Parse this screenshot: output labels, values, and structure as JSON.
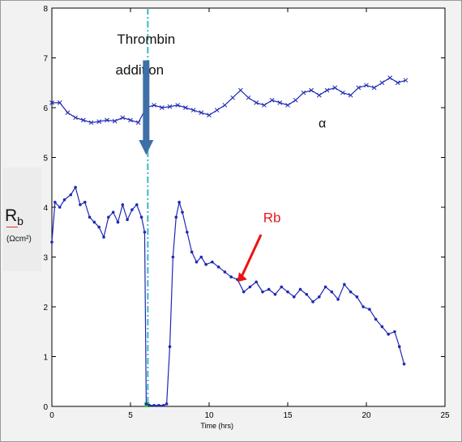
{
  "chart_data": {
    "type": "line",
    "xlabel": "Time (hrs)",
    "ylabel": "R",
    "ylabel_subscript": "b",
    "ylabel_unit": "(Ωcm²)",
    "xlim": [
      0,
      25
    ],
    "ylim": [
      0,
      8
    ],
    "xticks": [
      "0",
      "5",
      "10",
      "15",
      "20",
      "25"
    ],
    "yticks": [
      "0",
      "1",
      "2",
      "3",
      "4",
      "5",
      "6",
      "7",
      "8"
    ],
    "grid": false,
    "colors": {
      "series": "#1f28b4",
      "arrow_blue": "#3f6fa8",
      "arrow_red": "#ee1111",
      "vline": "#3cb8c8",
      "text_red": "#e31a1c"
    },
    "annotations": [
      {
        "text": "Thrombin",
        "x": 6.1,
        "y": 7.2
      },
      {
        "text": "addition",
        "x": 6.1,
        "y": 6.7
      },
      {
        "text": "α",
        "x": 17.2,
        "y": 5.6
      },
      {
        "text": "Rb",
        "x": 14.0,
        "y": 3.7
      }
    ],
    "event_x": 6.1,
    "series": [
      {
        "marker": "x",
        "x": [
          0,
          0.5,
          1,
          1.5,
          2,
          2.5,
          3,
          3.5,
          4,
          4.5,
          5,
          5.5,
          6,
          6.5,
          7,
          7.5,
          8,
          8.5,
          9,
          9.5,
          10,
          10.5,
          11,
          11.5,
          12,
          12.5,
          13,
          13.5,
          14,
          14.5,
          15,
          15.5,
          16,
          16.5,
          17,
          17.5,
          18,
          18.5,
          19,
          19.5,
          20,
          20.5,
          21,
          21.5,
          22,
          22.5
        ],
        "y": [
          6.1,
          6.1,
          5.9,
          5.8,
          5.75,
          5.7,
          5.72,
          5.75,
          5.73,
          5.8,
          5.75,
          5.7,
          6.0,
          6.05,
          6.0,
          6.02,
          6.05,
          6.0,
          5.95,
          5.9,
          5.85,
          5.95,
          6.05,
          6.2,
          6.35,
          6.2,
          6.1,
          6.05,
          6.15,
          6.1,
          6.05,
          6.15,
          6.3,
          6.35,
          6.25,
          6.35,
          6.4,
          6.3,
          6.25,
          6.4,
          6.45,
          6.4,
          6.5,
          6.6,
          6.5,
          6.55
        ]
      },
      {
        "marker": "dot",
        "x": [
          0,
          0.2,
          0.5,
          0.8,
          1.2,
          1.5,
          1.8,
          2.1,
          2.4,
          2.7,
          3.0,
          3.3,
          3.6,
          3.9,
          4.2,
          4.5,
          4.8,
          5.1,
          5.4,
          5.7,
          5.9,
          6.0,
          6.2,
          6.5,
          6.8,
          7.1,
          7.3,
          7.5,
          7.7,
          7.9,
          8.1,
          8.3,
          8.6,
          8.9,
          9.2,
          9.5,
          9.8,
          10.2,
          10.6,
          11.0,
          11.4,
          11.8,
          12.2,
          12.6,
          13.0,
          13.4,
          13.8,
          14.2,
          14.6,
          15.0,
          15.4,
          15.8,
          16.2,
          16.6,
          17.0,
          17.4,
          17.8,
          18.2,
          18.6,
          19.0,
          19.4,
          19.8,
          20.2,
          20.6,
          21.0,
          21.4,
          21.8,
          22.1,
          22.4
        ],
        "y": [
          3.3,
          4.1,
          4.0,
          4.15,
          4.25,
          4.4,
          4.05,
          4.1,
          3.8,
          3.7,
          3.6,
          3.4,
          3.8,
          3.9,
          3.7,
          4.05,
          3.75,
          3.95,
          4.05,
          3.8,
          3.5,
          0.05,
          0.02,
          0.02,
          0.02,
          0.02,
          0.05,
          1.2,
          3.0,
          3.8,
          4.1,
          3.9,
          3.5,
          3.1,
          2.9,
          3.0,
          2.85,
          2.9,
          2.8,
          2.7,
          2.6,
          2.55,
          2.3,
          2.4,
          2.5,
          2.3,
          2.35,
          2.25,
          2.4,
          2.3,
          2.2,
          2.35,
          2.25,
          2.1,
          2.2,
          2.4,
          2.3,
          2.15,
          2.45,
          2.3,
          2.2,
          2.0,
          1.95,
          1.75,
          1.6,
          1.45,
          1.5,
          1.2,
          0.85
        ]
      }
    ]
  }
}
